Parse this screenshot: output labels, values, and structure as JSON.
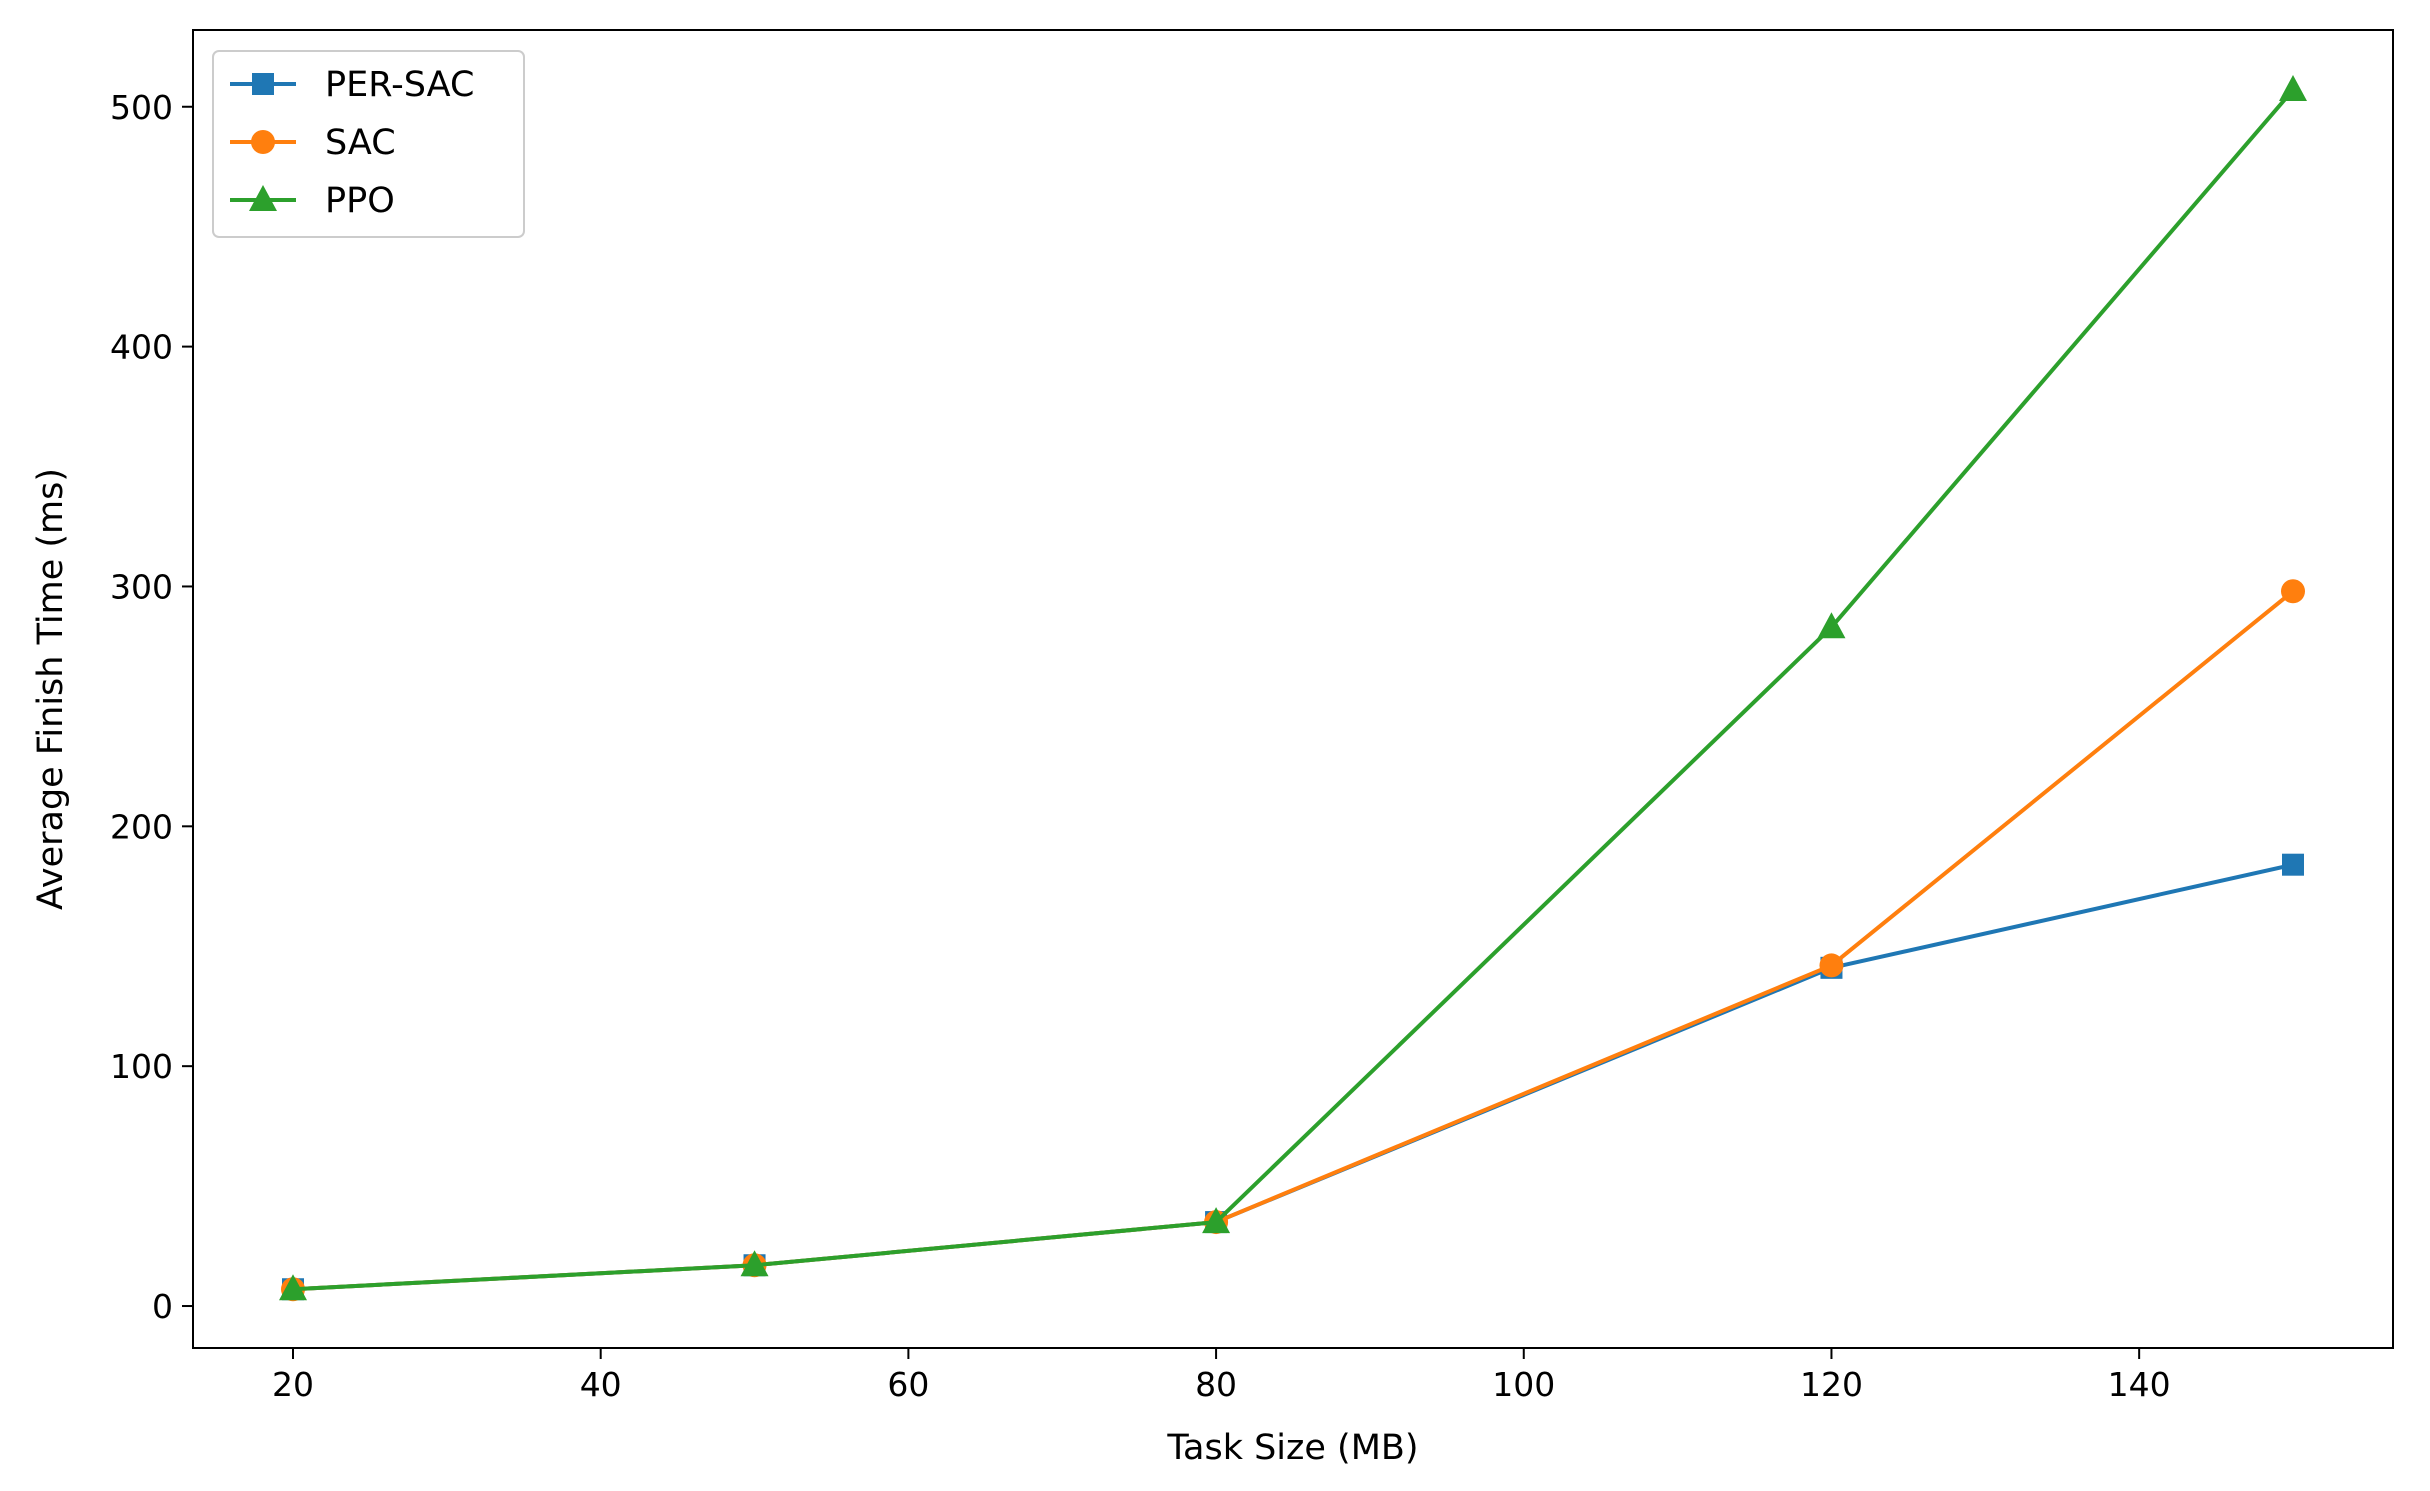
{
  "chart_data": {
    "type": "line",
    "title": "",
    "xlabel": "Task Size (MB)",
    "ylabel": "Average Finish Time (ms)",
    "xlim": [
      13.5,
      156.5
    ],
    "ylim": [
      -17.5,
      532
    ],
    "xticks": [
      20,
      40,
      60,
      80,
      100,
      120,
      140
    ],
    "yticks": [
      0,
      100,
      200,
      300,
      400,
      500
    ],
    "grid": false,
    "legend_position": "top-left",
    "x": [
      20,
      50,
      80,
      120,
      150
    ],
    "series": [
      {
        "name": "PER-SAC",
        "color": "#1f77b4",
        "marker": "square",
        "values": [
          7,
          17,
          35,
          141,
          184
        ]
      },
      {
        "name": "SAC",
        "color": "#ff7f0e",
        "marker": "circle",
        "values": [
          7,
          17,
          35,
          142,
          298
        ]
      },
      {
        "name": "PPO",
        "color": "#2ca02c",
        "marker": "triangle",
        "values": [
          7,
          17,
          35,
          283,
          507
        ]
      }
    ]
  }
}
